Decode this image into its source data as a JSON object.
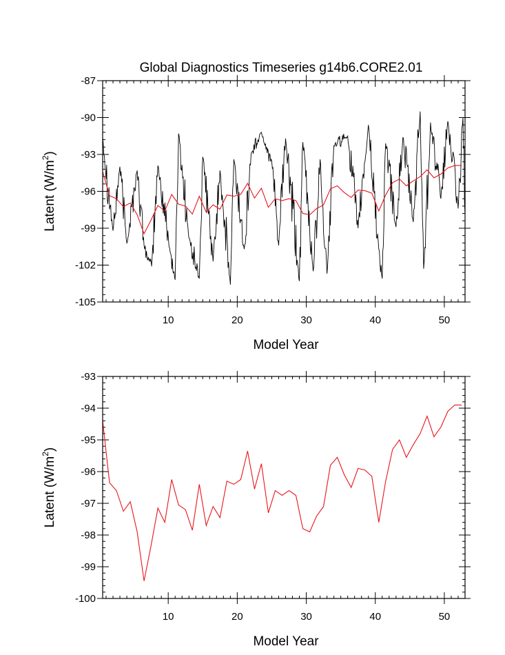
{
  "page": {
    "title": "Global Diagnostics Timeseries g14b6.CORE2.01"
  },
  "colors": {
    "monthly": "#000000",
    "annual": "#e8141a",
    "axis": "#000000"
  },
  "chart_data": [
    {
      "type": "line",
      "title": "Global Diagnostics Timeseries g14b6.CORE2.01",
      "xlabel": "Model Year",
      "ylabel": "Latent (W/m",
      "ylabel_sup": "2",
      "ylabel_close": ")",
      "xlim": [
        0.5,
        53.0
      ],
      "ylim": [
        -105,
        -87
      ],
      "xticks": [
        10,
        20,
        30,
        40,
        50
      ],
      "xtick_labels": [
        "10",
        "20",
        "30",
        "40",
        "50"
      ],
      "yticks": [
        -105,
        -102,
        -99,
        -96,
        -93,
        -90,
        -87
      ],
      "ytick_labels": [
        "-105",
        "-102",
        "-99",
        "-96",
        "-93",
        "-90",
        "-87"
      ],
      "series": [
        {
          "name": "monthly",
          "color": "#000000",
          "anchors": [
            {
              "x": 0.5,
              "y": -91.6
            },
            {
              "x": 2.0,
              "y": -99.2
            },
            {
              "x": 3.0,
              "y": -94.0
            },
            {
              "x": 4.0,
              "y": -100.2
            },
            {
              "x": 5.5,
              "y": -94.3
            },
            {
              "x": 6.5,
              "y": -100.4
            },
            {
              "x": 7.2,
              "y": -101.6
            },
            {
              "x": 7.6,
              "y": -102.1
            },
            {
              "x": 8.5,
              "y": -93.9
            },
            {
              "x": 10.2,
              "y": -100.6
            },
            {
              "x": 11.0,
              "y": -103.2
            },
            {
              "x": 11.5,
              "y": -91.3
            },
            {
              "x": 13.0,
              "y": -99.8
            },
            {
              "x": 14.5,
              "y": -103.1
            },
            {
              "x": 15.0,
              "y": -93.2
            },
            {
              "x": 16.5,
              "y": -101.7
            },
            {
              "x": 17.5,
              "y": -94.3
            },
            {
              "x": 19.0,
              "y": -103.6
            },
            {
              "x": 19.5,
              "y": -93.4
            },
            {
              "x": 21.0,
              "y": -100.7
            },
            {
              "x": 22.0,
              "y": -93.0
            },
            {
              "x": 23.5,
              "y": -91.2
            },
            {
              "x": 25.0,
              "y": -93.6
            },
            {
              "x": 26.0,
              "y": -100.4
            },
            {
              "x": 27.0,
              "y": -91.7
            },
            {
              "x": 29.0,
              "y": -103.3
            },
            {
              "x": 29.5,
              "y": -92.0
            },
            {
              "x": 31.0,
              "y": -102.5
            },
            {
              "x": 32.0,
              "y": -93.4
            },
            {
              "x": 33.0,
              "y": -102.7
            },
            {
              "x": 34.0,
              "y": -92.3
            },
            {
              "x": 36.0,
              "y": -91.5
            },
            {
              "x": 37.5,
              "y": -99.0
            },
            {
              "x": 39.0,
              "y": -90.6
            },
            {
              "x": 40.5,
              "y": -100.7
            },
            {
              "x": 41.0,
              "y": -103.1
            },
            {
              "x": 41.5,
              "y": -92.1
            },
            {
              "x": 43.0,
              "y": -98.9
            },
            {
              "x": 44.0,
              "y": -91.6
            },
            {
              "x": 45.5,
              "y": -98.5
            },
            {
              "x": 46.5,
              "y": -89.5
            },
            {
              "x": 47.0,
              "y": -102.3
            },
            {
              "x": 48.0,
              "y": -90.4
            },
            {
              "x": 49.5,
              "y": -96.6
            },
            {
              "x": 50.5,
              "y": -90.3
            },
            {
              "x": 52.0,
              "y": -97.4
            },
            {
              "x": 52.7,
              "y": -90.0
            },
            {
              "x": 53.0,
              "y": -97.9
            }
          ]
        },
        {
          "name": "annual",
          "color": "#e8141a",
          "x": [
            0.5,
            1.5,
            2.5,
            3.5,
            4.5,
            5.5,
            6.5,
            7.5,
            8.5,
            9.5,
            10.5,
            11.5,
            12.5,
            13.5,
            14.5,
            15.5,
            16.5,
            17.5,
            18.5,
            19.5,
            20.5,
            21.5,
            22.5,
            23.5,
            24.5,
            25.5,
            26.5,
            27.5,
            28.5,
            29.5,
            30.5,
            31.5,
            32.5,
            33.5,
            34.5,
            35.5,
            36.5,
            37.5,
            38.5,
            39.5,
            40.5,
            41.5,
            42.5,
            43.5,
            44.5,
            45.5,
            46.5,
            47.5,
            48.5,
            49.5,
            50.5,
            51.5,
            52.5
          ],
          "values": [
            -94.4,
            -96.35,
            -96.6,
            -97.25,
            -96.95,
            -97.9,
            -99.45,
            -98.35,
            -97.15,
            -97.6,
            -96.25,
            -97.05,
            -97.2,
            -97.85,
            -96.4,
            -97.7,
            -97.1,
            -97.45,
            -96.3,
            -96.4,
            -96.25,
            -95.35,
            -96.55,
            -95.75,
            -97.3,
            -96.6,
            -96.75,
            -96.6,
            -96.75,
            -97.8,
            -97.9,
            -97.4,
            -97.1,
            -95.8,
            -95.55,
            -96.1,
            -96.5,
            -95.9,
            -95.95,
            -96.15,
            -97.6,
            -96.3,
            -95.3,
            -95.0,
            -95.55,
            -95.15,
            -94.8,
            -94.25,
            -94.9,
            -94.6,
            -94.1,
            -93.9,
            -93.9
          ]
        }
      ]
    },
    {
      "type": "line",
      "title": "",
      "xlabel": "Model Year",
      "ylabel": "Latent (W/m",
      "ylabel_sup": "2",
      "ylabel_close": ")",
      "xlim": [
        0.5,
        53.0
      ],
      "ylim": [
        -100,
        -93
      ],
      "xticks": [
        10,
        20,
        30,
        40,
        50
      ],
      "xtick_labels": [
        "10",
        "20",
        "30",
        "40",
        "50"
      ],
      "yticks": [
        -100,
        -99,
        -98,
        -97,
        -96,
        -95,
        -94,
        -93
      ],
      "ytick_labels": [
        "-100",
        "-99",
        "-98",
        "-97",
        "-96",
        "-95",
        "-94",
        "-93"
      ],
      "series": [
        {
          "name": "annual",
          "color": "#e8141a",
          "x": [
            0.5,
            1.5,
            2.5,
            3.5,
            4.5,
            5.5,
            6.5,
            7.5,
            8.5,
            9.5,
            10.5,
            11.5,
            12.5,
            13.5,
            14.5,
            15.5,
            16.5,
            17.5,
            18.5,
            19.5,
            20.5,
            21.5,
            22.5,
            23.5,
            24.5,
            25.5,
            26.5,
            27.5,
            28.5,
            29.5,
            30.5,
            31.5,
            32.5,
            33.5,
            34.5,
            35.5,
            36.5,
            37.5,
            38.5,
            39.5,
            40.5,
            41.5,
            42.5,
            43.5,
            44.5,
            45.5,
            46.5,
            47.5,
            48.5,
            49.5,
            50.5,
            51.5,
            52.5
          ],
          "values": [
            -94.4,
            -96.35,
            -96.6,
            -97.25,
            -96.95,
            -97.9,
            -99.45,
            -98.35,
            -97.15,
            -97.6,
            -96.25,
            -97.05,
            -97.2,
            -97.85,
            -96.4,
            -97.7,
            -97.1,
            -97.45,
            -96.3,
            -96.4,
            -96.25,
            -95.35,
            -96.55,
            -95.75,
            -97.3,
            -96.6,
            -96.75,
            -96.6,
            -96.75,
            -97.8,
            -97.9,
            -97.4,
            -97.1,
            -95.8,
            -95.55,
            -96.1,
            -96.5,
            -95.9,
            -95.95,
            -96.15,
            -97.6,
            -96.3,
            -95.3,
            -95.0,
            -95.55,
            -95.15,
            -94.8,
            -94.25,
            -94.9,
            -94.6,
            -94.1,
            -93.9,
            -93.9
          ]
        }
      ]
    }
  ]
}
